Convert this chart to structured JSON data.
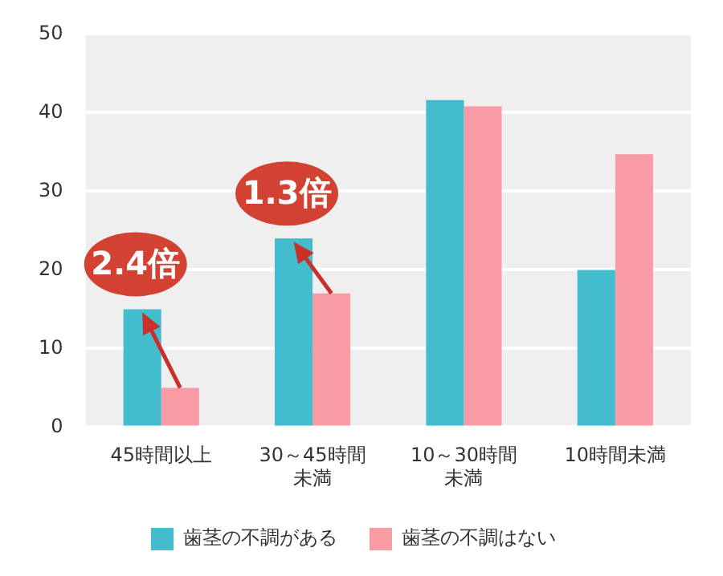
{
  "chart_data": {
    "type": "bar",
    "categories": [
      "45時間以上",
      "30～45時間未満",
      "10～30時間未満",
      "10時間未満"
    ],
    "series": [
      {
        "name": "歯茎の不調がある",
        "color": "#43bccd",
        "values": [
          15,
          24,
          41.6,
          20
        ]
      },
      {
        "name": "歯茎の不調はない",
        "color": "#f99ba5",
        "values": [
          5,
          17,
          40.8,
          34.7
        ]
      }
    ],
    "ylim": [
      0,
      50
    ],
    "yticks": [
      0,
      10,
      20,
      30,
      40,
      50
    ],
    "grid": "y",
    "legend": "bottom",
    "annotations": [
      "2.4倍",
      "1.3倍"
    ]
  }
}
